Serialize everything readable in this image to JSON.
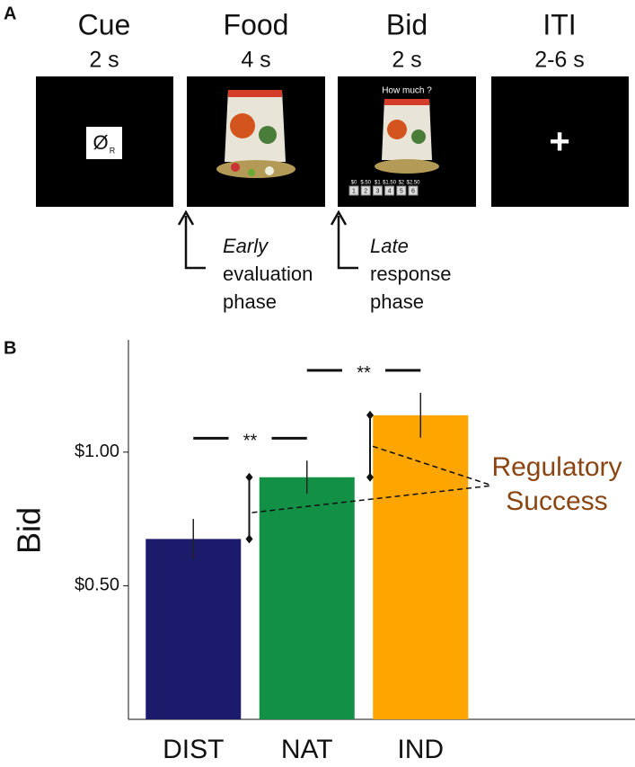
{
  "panels": [
    "A",
    "B"
  ],
  "timeline": {
    "screens": [
      {
        "label": "Cue",
        "duration": "2 s"
      },
      {
        "label": "Food",
        "duration": "4 s"
      },
      {
        "label": "Bid",
        "duration": "2 s"
      },
      {
        "label": "ITI",
        "duration": "2-6 s"
      }
    ],
    "cue_symbol": "Ø",
    "cue_subscript": "R",
    "bid_prompt": "How much ?",
    "bid_prices": [
      "$0",
      "$.50",
      "$1",
      "$1.50",
      "$2",
      "$2.50"
    ],
    "bid_keys": [
      "1",
      "2",
      "3",
      "4",
      "5",
      "6"
    ],
    "iti_symbol": "+",
    "phases": [
      {
        "timing": "Early",
        "lines": [
          "evaluation",
          "phase"
        ]
      },
      {
        "timing": "Late",
        "lines": [
          "response",
          "phase"
        ]
      }
    ]
  },
  "chart_data": {
    "type": "bar",
    "ylabel": "Bid",
    "categories": [
      "DIST",
      "NAT",
      "IND"
    ],
    "values": [
      0.675,
      0.906,
      1.138
    ],
    "errors": [
      0.075,
      0.062,
      0.084
    ],
    "colors": [
      "#1c1a6b",
      "#129046",
      "#fea500"
    ],
    "ylim": [
      0,
      1.42
    ],
    "yticks": [
      {
        "value": 0.5,
        "label": "$0.50"
      },
      {
        "value": 1,
        "label": "$1.00"
      }
    ],
    "significance": [
      "**",
      "**"
    ],
    "annotation": {
      "lines": [
        "Regulatory",
        "Success"
      ],
      "color": "#8b4513"
    }
  }
}
